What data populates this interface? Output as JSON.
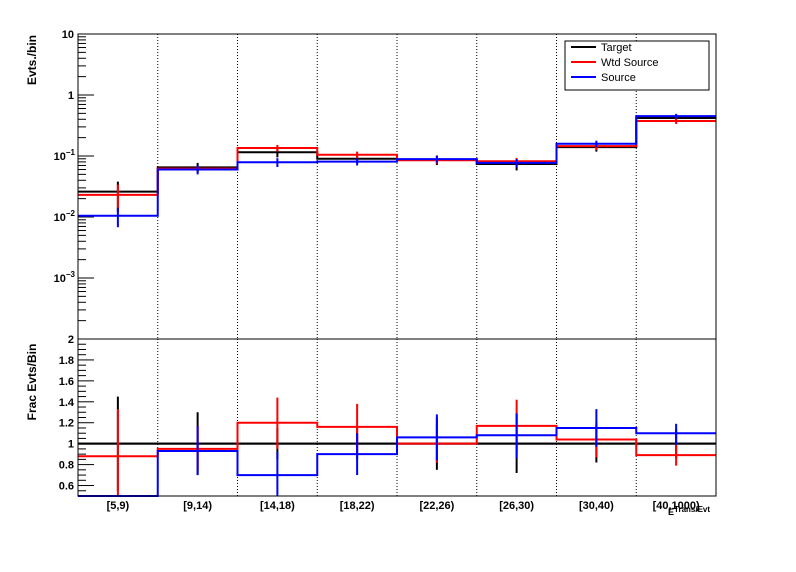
{
  "chart_data": [
    {
      "type": "step-histogram",
      "panel": "top",
      "ylabel": "Evts./bin",
      "yscale": "log",
      "ylim": [
        0.0001,
        10
      ],
      "yticks": [
        {
          "value": 10,
          "label": "10",
          "exp": ""
        },
        {
          "value": 1,
          "label": "1",
          "exp": ""
        },
        {
          "value": 0.1,
          "label": "10",
          "exp": "−1"
        },
        {
          "value": 0.01,
          "label": "10",
          "exp": "−2"
        },
        {
          "value": 0.001,
          "label": "10",
          "exp": "−3"
        }
      ],
      "categories": [
        "[5,9)",
        "[9,14)",
        "[14,18)",
        "[18,22)",
        "[22,26)",
        "[26,30)",
        "[30,40)",
        "[40,1000)"
      ],
      "legend_position": "top-right",
      "grid": "vertical-dotted",
      "series": [
        {
          "name": "Target",
          "color": "#000000",
          "values": [
            0.026,
            0.065,
            0.115,
            0.09,
            0.087,
            0.074,
            0.14,
            0.42
          ],
          "err_lo": [
            0.012,
            0.054,
            0.095,
            0.075,
            0.071,
            0.058,
            0.118,
            0.365
          ],
          "err_hi": [
            0.038,
            0.077,
            0.135,
            0.105,
            0.102,
            0.089,
            0.163,
            0.475
          ]
        },
        {
          "name": "Wtd Source",
          "color": "#ff0000",
          "values": [
            0.023,
            0.062,
            0.135,
            0.105,
            0.085,
            0.082,
            0.145,
            0.375
          ],
          "err_lo": [
            0.013,
            0.054,
            0.118,
            0.092,
            0.075,
            0.071,
            0.125,
            0.335
          ],
          "err_hi": [
            0.034,
            0.07,
            0.152,
            0.118,
            0.095,
            0.093,
            0.165,
            0.415
          ]
        },
        {
          "name": "Source",
          "color": "#0000ff",
          "values": [
            0.0105,
            0.06,
            0.079,
            0.081,
            0.089,
            0.077,
            0.159,
            0.45
          ],
          "err_lo": [
            0.0068,
            0.05,
            0.066,
            0.07,
            0.078,
            0.065,
            0.14,
            0.41
          ],
          "err_hi": [
            0.0142,
            0.07,
            0.092,
            0.092,
            0.1,
            0.089,
            0.178,
            0.49
          ]
        }
      ]
    },
    {
      "type": "step-histogram",
      "panel": "bottom",
      "ylabel": "Frac Evts/Bin",
      "xlabel": "E",
      "xlabel_sub": "Trans/Evt",
      "ylim": [
        0.5,
        2
      ],
      "yticks": [
        0.6,
        0.8,
        1,
        1.2,
        1.4,
        1.6,
        1.8,
        2
      ],
      "reference_line": 1,
      "categories": [
        "[5,9)",
        "[9,14)",
        "[14,18)",
        "[18,22)",
        "[22,26)",
        "[26,30)",
        "[30,40)",
        "[40,1000)"
      ],
      "series": [
        {
          "name": "Target",
          "color": "#000000",
          "values": [
            1,
            1,
            1,
            1,
            1,
            1,
            1,
            1
          ],
          "err_lo": [
            0.55,
            0.7,
            0.85,
            0.85,
            0.75,
            0.72,
            0.82,
            0.86
          ],
          "err_hi": [
            1.45,
            1.3,
            1.15,
            1.15,
            1.25,
            1.28,
            1.18,
            1.14
          ]
        },
        {
          "name": "Wtd Source",
          "color": "#ff0000",
          "values": [
            0.88,
            0.95,
            1.2,
            1.16,
            1.0,
            1.17,
            1.04,
            0.89
          ],
          "err_lo": [
            0.5,
            0.75,
            0.95,
            0.93,
            0.82,
            0.92,
            0.87,
            0.79
          ],
          "err_hi": [
            1.33,
            1.17,
            1.44,
            1.38,
            1.18,
            1.42,
            1.21,
            0.99
          ]
        },
        {
          "name": "Source",
          "color": "#0000ff",
          "values": [
            0.5,
            0.93,
            0.7,
            0.9,
            1.06,
            1.08,
            1.15,
            1.1
          ],
          "err_lo": [
            0.5,
            0.7,
            0.5,
            0.7,
            0.84,
            0.86,
            0.97,
            0.99
          ],
          "err_hi": [
            0.5,
            1.17,
            0.92,
            1.1,
            1.28,
            1.29,
            1.33,
            1.19
          ]
        }
      ]
    }
  ]
}
